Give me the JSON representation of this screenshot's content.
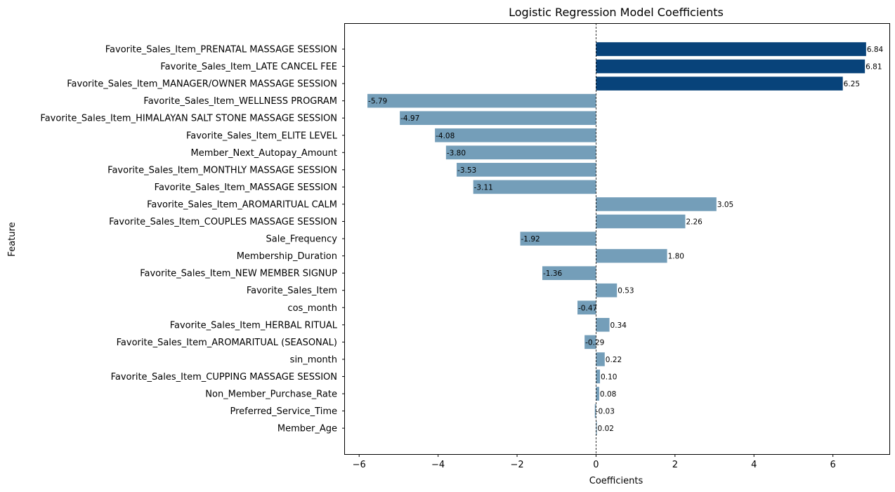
{
  "chart_data": {
    "type": "bar",
    "orientation": "horizontal",
    "title": "Logistic Regression Model Coefficients",
    "xlabel": "Coefficients",
    "ylabel": "Feature",
    "xlim": [
      -6.36,
      7.43
    ],
    "xticks": [
      -6,
      -4,
      -2,
      0,
      2,
      4,
      6
    ],
    "xtick_labels": [
      "−6",
      "−4",
      "−2",
      "0",
      "2",
      "4",
      "6"
    ],
    "zero_line": "dashed",
    "grid": false,
    "colors": {
      "highlight": "#08437a",
      "default": "#749eb9"
    },
    "categories": [
      "Favorite_Sales_Item_PRENATAL MASSAGE SESSION",
      "Favorite_Sales_Item_LATE CANCEL FEE",
      "Favorite_Sales_Item_MANAGER/OWNER MASSAGE SESSION",
      "Favorite_Sales_Item_WELLNESS PROGRAM",
      "Favorite_Sales_Item_HIMALAYAN SALT STONE MASSAGE SESSION",
      "Favorite_Sales_Item_ELITE LEVEL",
      "Member_Next_Autopay_Amount",
      "Favorite_Sales_Item_MONTHLY MASSAGE SESSION",
      "Favorite_Sales_Item_MASSAGE SESSION",
      "Favorite_Sales_Item_AROMARITUAL CALM",
      "Favorite_Sales_Item_COUPLES MASSAGE SESSION",
      "Sale_Frequency",
      "Membership_Duration",
      "Favorite_Sales_Item_NEW MEMBER SIGNUP",
      "Favorite_Sales_Item",
      "cos_month",
      "Favorite_Sales_Item_HERBAL RITUAL",
      "Favorite_Sales_Item_AROMARITUAL (SEASONAL)",
      "sin_month",
      "Favorite_Sales_Item_CUPPING MASSAGE SESSION",
      "Non_Member_Purchase_Rate",
      "Preferred_Service_Time",
      "Member_Age"
    ],
    "values": [
      6.84,
      6.81,
      6.25,
      -5.79,
      -4.97,
      -4.08,
      -3.8,
      -3.53,
      -3.11,
      3.05,
      2.26,
      -1.92,
      1.8,
      -1.36,
      0.53,
      -0.47,
      0.34,
      -0.29,
      0.22,
      0.1,
      0.08,
      -0.03,
      0.02
    ],
    "value_labels": [
      "6.84",
      "6.81",
      "6.25",
      "-5.79",
      "-4.97",
      "-4.08",
      "-3.80",
      "-3.53",
      "-3.11",
      "3.05",
      "2.26",
      "-1.92",
      "1.80",
      "-1.36",
      "0.53",
      "-0.47",
      "0.34",
      "-0.29",
      "0.22",
      "0.10",
      "0.08",
      "-0.03",
      "0.02"
    ],
    "highlighted": [
      true,
      true,
      true,
      false,
      false,
      false,
      false,
      false,
      false,
      false,
      false,
      false,
      false,
      false,
      false,
      false,
      false,
      false,
      false,
      false,
      false,
      false,
      false
    ]
  }
}
